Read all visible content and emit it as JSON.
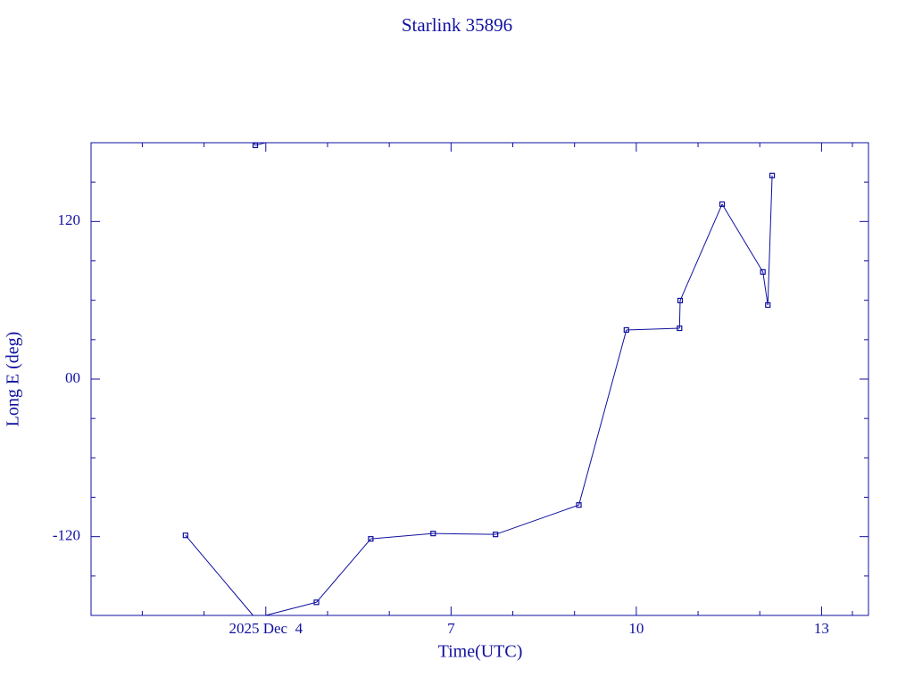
{
  "chart_data": {
    "type": "line",
    "title": "Starlink 35896",
    "xlabel": "Time(UTC)",
    "ylabel": "Long E (deg)",
    "color": "#1010a0",
    "x": [
      2.7,
      3.83,
      4.82,
      5.7,
      6.71,
      7.72,
      9.07,
      9.84,
      10.7,
      10.71,
      11.39,
      12.05,
      12.13,
      12.2
    ],
    "series": [
      {
        "name": "Long E",
        "color": "#1010a0",
        "values": [
          -119,
          178,
          -170,
          -121.7,
          -117.6,
          -118.3,
          -95.9,
          37.4,
          38.7,
          59.8,
          133.2,
          81.6,
          56.4,
          155
        ]
      }
    ],
    "wrap": true,
    "xlim": [
      1.17,
      13.76
    ],
    "xticks": [
      {
        "value": 4,
        "label": "2025 Dec  4"
      },
      7,
      10,
      13
    ],
    "xminorticks": [
      2,
      3,
      5,
      6,
      8,
      9,
      11,
      12,
      13.5
    ],
    "ylim": [
      -180,
      180
    ],
    "yticks": [
      {
        "value": -120,
        "label": "-120"
      },
      {
        "value": 0,
        "label": "00"
      },
      120
    ],
    "yminorticks": [
      -150,
      -90,
      -60,
      -30,
      30,
      60,
      90,
      150
    ]
  }
}
